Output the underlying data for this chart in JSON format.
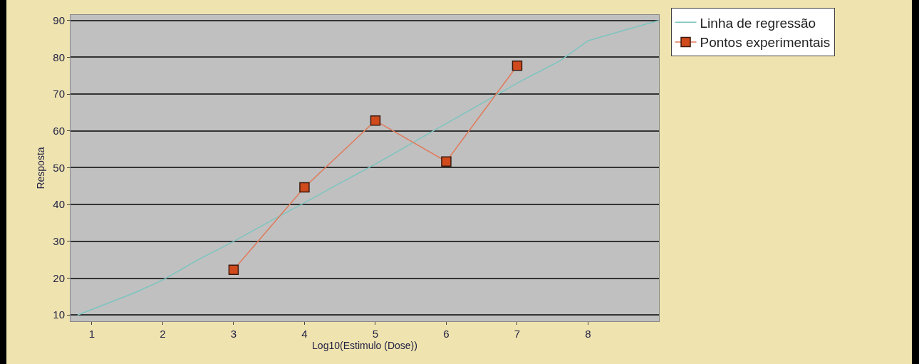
{
  "chart_data": {
    "type": "line",
    "xlabel": "Log10(Estimulo (Dose))",
    "ylabel": "Resposta",
    "xlim": [
      0.7,
      9.0
    ],
    "xticks": [
      1,
      2,
      3,
      4,
      5,
      6,
      7,
      8
    ],
    "ylim": [
      8.3,
      91.5
    ],
    "yticks": [
      10,
      20,
      30,
      40,
      50,
      60,
      70,
      80,
      90
    ],
    "grid": "y",
    "legend": "top right",
    "series": [
      {
        "name": "Linha de regressão",
        "color": "#7cc4c0",
        "marker": "none",
        "x": [
          0.8,
          1.2,
          1.6,
          2,
          2.5,
          3,
          3.5,
          4,
          4.5,
          5,
          5.5,
          6,
          6.5,
          7,
          7.6,
          8,
          8.5,
          9
        ],
        "values": [
          10,
          13,
          16,
          19.5,
          25,
          30,
          35.3,
          40.5,
          45.8,
          51,
          56.5,
          62,
          67.5,
          73,
          79,
          84.5,
          87.3,
          90
        ]
      },
      {
        "name": "Pontos experimentais",
        "color": "#e07a5a",
        "marker": "square",
        "x": [
          3,
          4,
          5,
          6,
          7
        ],
        "values": [
          22.3,
          44.7,
          62.8,
          51.7,
          77.7
        ]
      }
    ]
  }
}
